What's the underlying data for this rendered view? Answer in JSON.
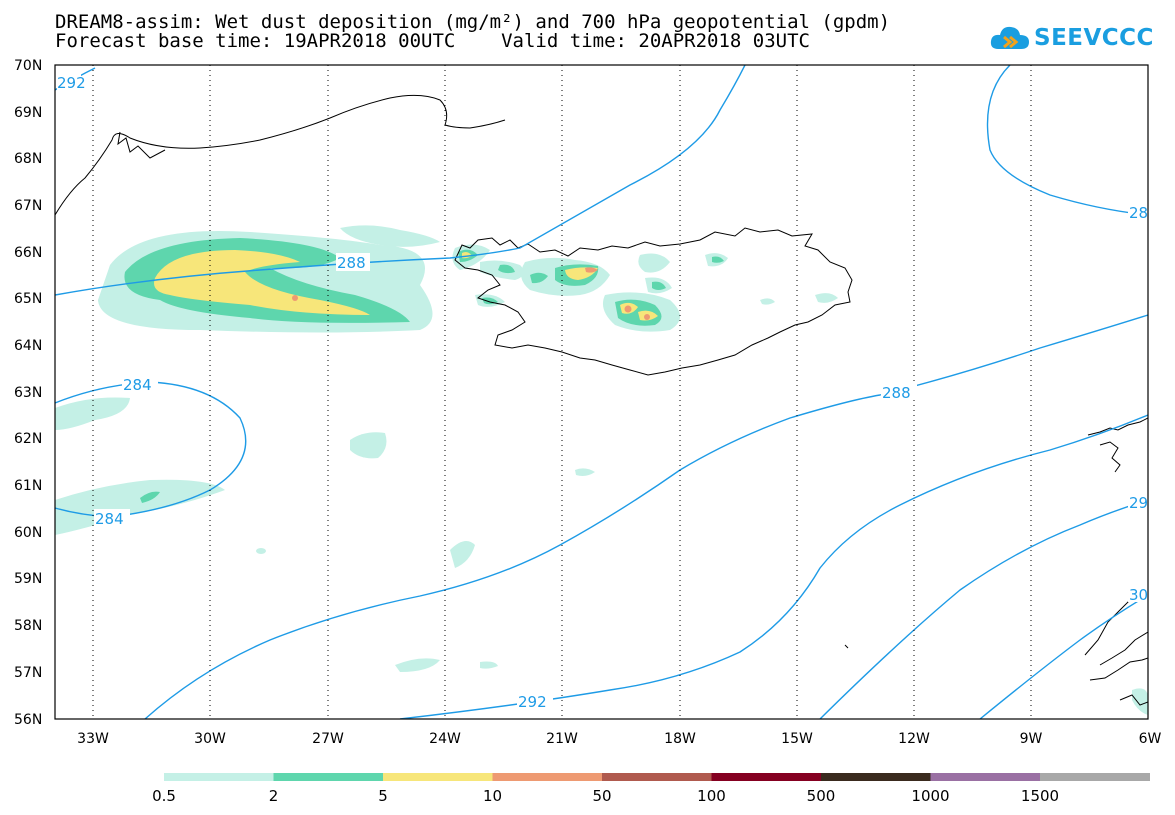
{
  "title_line1": "DREAM8-assim: Wet dust deposition (mg/m²) and 700 hPa geopotential (gpdm)",
  "title_line2": "Forecast base time: 19APR2018 00UTC    Valid time: 20APR2018 03UTC",
  "logo_text": "SEEVCCC",
  "lat_labels": [
    "70N",
    "69N",
    "68N",
    "67N",
    "66N",
    "65N",
    "64N",
    "63N",
    "62N",
    "61N",
    "60N",
    "59N",
    "58N",
    "57N",
    "56N"
  ],
  "lon_labels": [
    "33W",
    "30W",
    "27W",
    "24W",
    "21W",
    "18W",
    "15W",
    "12W",
    "9W",
    "6W"
  ],
  "contour_labels": [
    "292",
    "288",
    "28",
    "284",
    "284",
    "288",
    "292",
    "29",
    "30"
  ],
  "legend": {
    "labels": [
      "0.5",
      "2",
      "5",
      "10",
      "50",
      "100",
      "500",
      "1000",
      "1500"
    ],
    "colors": [
      "#c4f0e6",
      "#5ed6ad",
      "#f7e67a",
      "#ee9a72",
      "#b05a4e",
      "#850021",
      "#3a2a1e",
      "#9a70a3",
      "#a8a8a8"
    ]
  },
  "colors": {
    "contour": "#1e9be6",
    "dust_light": "#c4f0e6",
    "dust_green": "#5ed6ad",
    "dust_yellow": "#f7e67a",
    "dust_orange": "#ee9a72",
    "dust_red": "#b05a4e"
  }
}
